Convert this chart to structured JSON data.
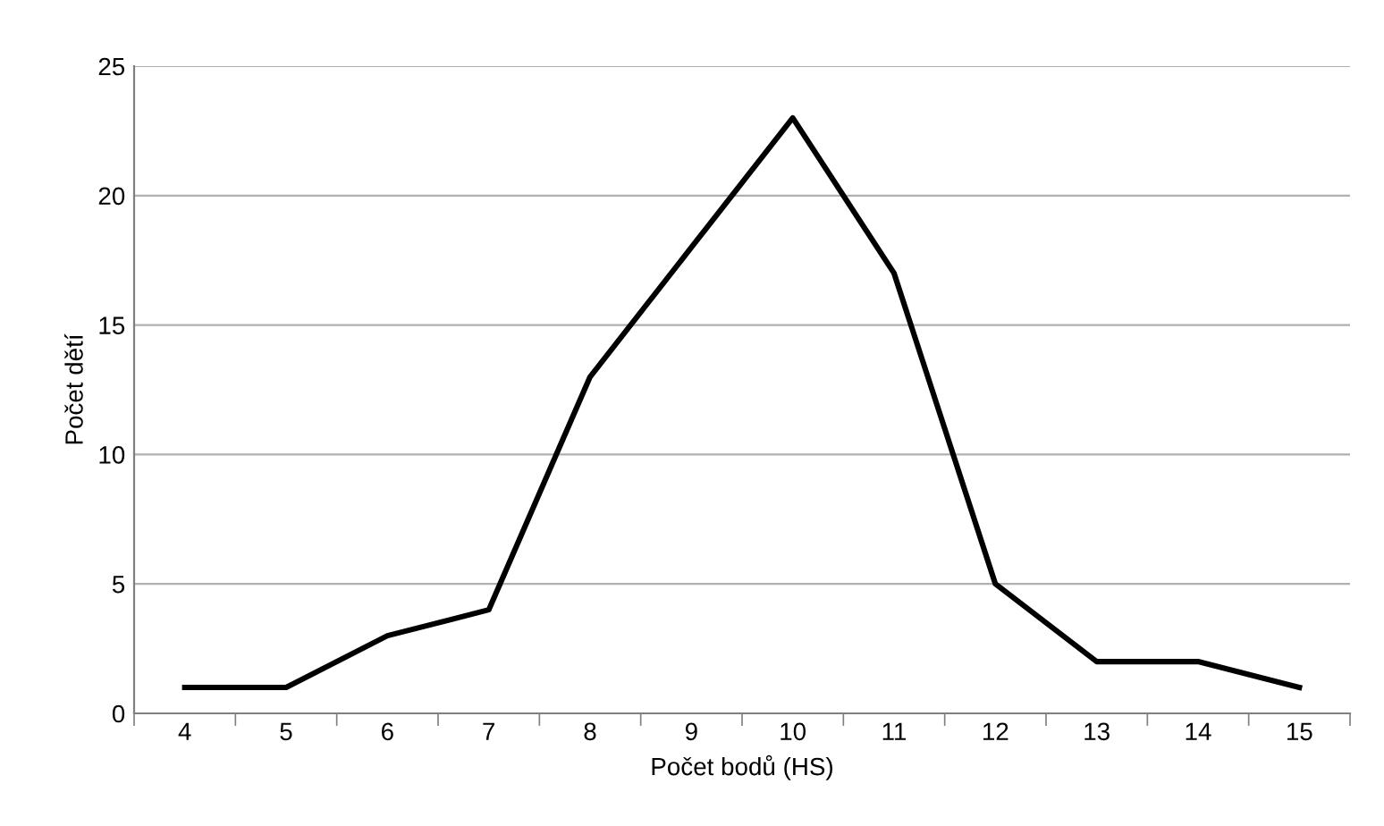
{
  "chart_data": {
    "type": "line",
    "xlabel": "Počet bodů (HS)",
    "ylabel": "Počet dětí",
    "categories": [
      "4",
      "5",
      "6",
      "7",
      "8",
      "9",
      "10",
      "11",
      "12",
      "13",
      "14",
      "15"
    ],
    "series": [
      {
        "color": "#000000",
        "values": [
          1,
          1,
          3,
          4,
          13,
          18,
          23,
          17,
          5,
          2,
          2,
          1
        ]
      }
    ],
    "ylim": [
      0,
      25
    ],
    "yticks": [
      0,
      5,
      10,
      15,
      20,
      25
    ],
    "grid": "y",
    "legend": false,
    "marker": "none",
    "line_style": "solid"
  }
}
